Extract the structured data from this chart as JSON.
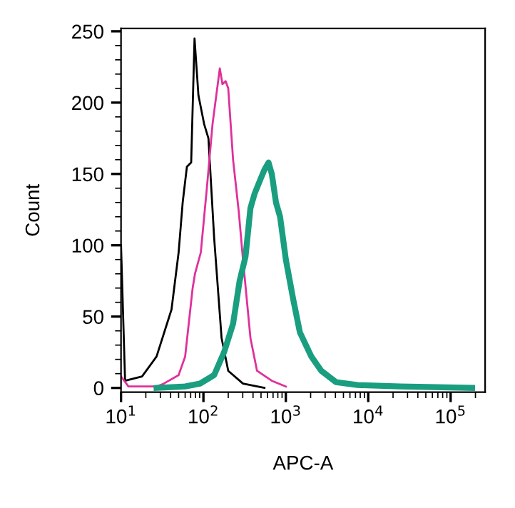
{
  "chart_data": {
    "type": "line",
    "xlabel": "APC-A",
    "ylabel": "Count",
    "log": "x",
    "xlim": [
      10,
      262144
    ],
    "xticks": [
      {
        "value": 10,
        "label": "10$^{1}$"
      },
      {
        "value": 100,
        "label": "10$^{2}$"
      },
      {
        "value": 1000,
        "label": "10$^{3}$"
      },
      {
        "value": 10000,
        "label": "10$^{4}$"
      },
      {
        "value": 100000,
        "label": "10$^{5}$"
      }
    ],
    "ylim": [
      -3,
      252
    ],
    "yticks": [
      0,
      50,
      100,
      150,
      200,
      250
    ],
    "grid": false,
    "legend": false,
    "line_style": "solid",
    "marker": "none",
    "series": [
      {
        "color": "#000000",
        "x": [
          10,
          11.2,
          18,
          27,
          41,
          50,
          56,
          63,
          71,
          78,
          87,
          102,
          115,
          135,
          166,
          200,
          302,
          550
        ],
        "values": [
          100,
          5,
          8,
          22,
          55,
          95,
          130,
          155,
          158,
          245,
          205,
          185,
          175,
          105,
          35,
          12,
          3,
          0
        ]
      },
      {
        "color": "#e0309a",
        "x": [
          10,
          12.3,
          27,
          33,
          50,
          60,
          74,
          79,
          93,
          110,
          129,
          158,
          170,
          186,
          200,
          229,
          269,
          302,
          372,
          447,
          676,
          1000
        ],
        "values": [
          8,
          1,
          1,
          3,
          9,
          22,
          70,
          80,
          95,
          140,
          185,
          224,
          213,
          215,
          210,
          160,
          123,
          90,
          35,
          12,
          5,
          1
        ]
      },
      {
        "color": "#1a9e80",
        "x": [
          27,
          60,
          91,
          135,
          178,
          229,
          275,
          324,
          372,
          417,
          490,
          550,
          617,
          676,
          759,
          851,
          933,
          1000,
          1230,
          1480,
          2040,
          2690,
          4070,
          7410,
          24500,
          182000
        ],
        "values": [
          0,
          1,
          3,
          9,
          25,
          45,
          75,
          92,
          126,
          136,
          146,
          153,
          158,
          150,
          130,
          120,
          103,
          90,
          62,
          39,
          22,
          12,
          4,
          2,
          1,
          0
        ]
      }
    ]
  }
}
